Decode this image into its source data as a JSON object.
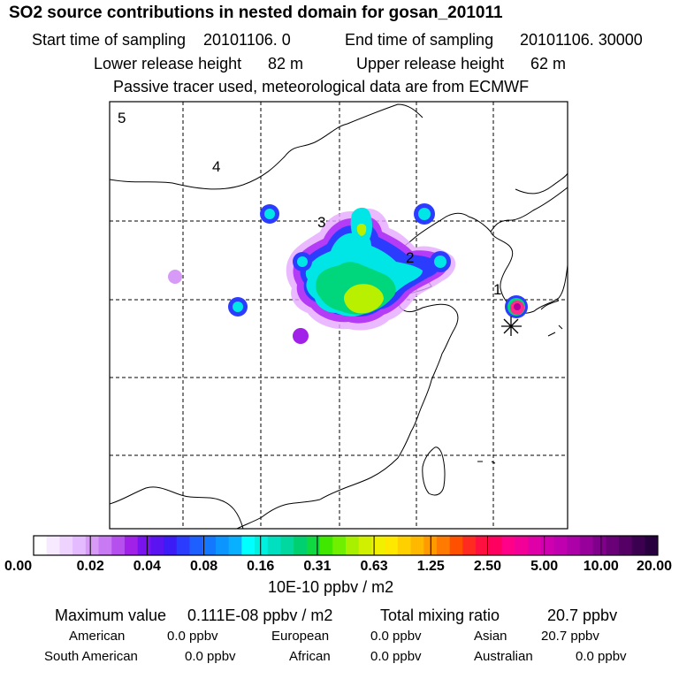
{
  "title": "SO2 source contributions in nested domain for gosan_201011",
  "sampling": {
    "start_label": "Start time of sampling",
    "start_value": "20101106.    0",
    "end_label": "End time of sampling",
    "end_value": "20101106. 30000"
  },
  "release": {
    "lower_label": "Lower release height",
    "lower_value": "82 m",
    "upper_label": "Upper release height",
    "upper_value": "62 m"
  },
  "note": "Passive tracer used, meteorological data are from ECMWF",
  "map": {
    "region_labels": [
      "1",
      "2",
      "3",
      "4",
      "5"
    ],
    "plume_colors": [
      "#e9b7ff",
      "#b43cf7",
      "#1e72ff",
      "#00e6e6",
      "#00d67c",
      "#b9f000",
      "#ff2a8a",
      "#b0009c"
    ]
  },
  "colorbar": {
    "unit": "10E-10 ppbv / m2",
    "ticks": [
      "0.00",
      "0.02",
      "0.04",
      "0.08",
      "0.16",
      "0.31",
      "0.63",
      "1.25",
      "2.50",
      "5.00",
      "10.00",
      "20.00"
    ],
    "colors": [
      "#ffffff",
      "#f7e9ff",
      "#efd3ff",
      "#e5bbff",
      "#d79bf7",
      "#c77af2",
      "#b550ef",
      "#a221e8",
      "#7a14ee",
      "#5a14f2",
      "#3c1cf6",
      "#2c3cff",
      "#1e60ff",
      "#1478ff",
      "#0c94ff",
      "#08b0ff",
      "#00ffff",
      "#00f0e0",
      "#00e0c0",
      "#00d8a0",
      "#00d070",
      "#10d840",
      "#40e800",
      "#70f000",
      "#a8f000",
      "#d0f000",
      "#f0f000",
      "#ffe800",
      "#ffd000",
      "#ffb800",
      "#ff9a00",
      "#ff7a00",
      "#ff5000",
      "#ff2a20",
      "#ff1040",
      "#ff0060",
      "#ff0088",
      "#f20098",
      "#e000a8",
      "#d000b0",
      "#c000b0",
      "#ac00a8",
      "#98009c",
      "#80008c",
      "#6a0078",
      "#540064",
      "#3c0050",
      "#280040"
    ]
  },
  "summary": {
    "max_label": "Maximum value",
    "max_value": "0.111E-08 ppbv / m2",
    "total_label": "Total mixing ratio",
    "total_value": "20.7 ppbv",
    "regions": [
      {
        "name": "American",
        "value": "0.0 ppbv"
      },
      {
        "name": "European",
        "value": "0.0 ppbv"
      },
      {
        "name": "Asian",
        "value": "20.7 ppbv"
      },
      {
        "name": "South American",
        "value": "0.0 ppbv"
      },
      {
        "name": "African",
        "value": "0.0 ppbv"
      },
      {
        "name": "Australian",
        "value": "0.0 ppbv"
      }
    ]
  }
}
